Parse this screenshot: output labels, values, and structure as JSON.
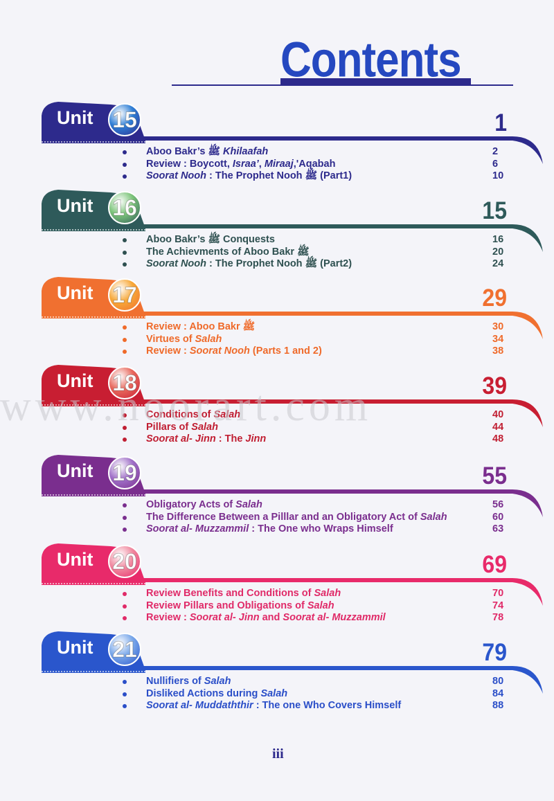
{
  "title": "Contents",
  "folio": "iii",
  "watermark": "www.noorart.com",
  "units": [
    {
      "label": "Unit",
      "number": "15",
      "page": "1",
      "color": "#2d2a8c",
      "badge_color": "#2f7fd6",
      "text_color": "#2d2a8c",
      "items": [
        {
          "text": "Aboo Bakr’s ﷺ Khilaafah",
          "page": "2"
        },
        {
          "text": "Review : Boycott, Israa’, Miraaj,'Aqabah",
          "page": "6"
        },
        {
          "text": "Soorat Nooh : The Prophet Nooh ﷺ (Part1)",
          "page": "10"
        }
      ]
    },
    {
      "label": "Unit",
      "number": "16",
      "page": "15",
      "color": "#2e5a5a",
      "badge_color": "#7cc47a",
      "text_color": "#2e5050",
      "items": [
        {
          "text": "Aboo Bakr’s ﷺ Conquests",
          "page": "16"
        },
        {
          "text": "The Achievments of Aboo Bakr ﷺ",
          "page": "20"
        },
        {
          "text": "Soorat Nooh : The Prophet Nooh ﷺ (Part2)",
          "page": "24"
        }
      ]
    },
    {
      "label": "Unit",
      "number": "17",
      "page": "29",
      "color": "#f07030",
      "badge_color": "#f7a838",
      "text_color": "#ef6a2a",
      "items": [
        {
          "text": "Review : Aboo Bakr ﷺ",
          "page": "30"
        },
        {
          "text": "Virtues of Salah",
          "page": "34"
        },
        {
          "text": "Review : Soorat Nooh (Parts 1 and 2)",
          "page": "38"
        }
      ]
    },
    {
      "label": "Unit",
      "number": "18",
      "page": "39",
      "color": "#c81e32",
      "badge_color": "#e86a5e",
      "text_color": "#c01e32",
      "items": [
        {
          "text": "Conditions of Salah",
          "page": "40"
        },
        {
          "text": "Pillars of Salah",
          "page": "44"
        },
        {
          "text": "Soorat al- Jinn : The Jinn",
          "page": "48"
        }
      ]
    },
    {
      "label": "Unit",
      "number": "19",
      "page": "55",
      "color": "#7a2e8e",
      "badge_color": "#a070c8",
      "text_color": "#7a2e8e",
      "items": [
        {
          "text": "Obligatory Acts of Salah",
          "page": "56"
        },
        {
          "text": "The Difference Between a Pilllar and an Obligatory Act of Salah",
          "page": "60"
        },
        {
          "text": "Soorat al- Muzzammil : The One who Wraps Himself",
          "page": "63"
        }
      ]
    },
    {
      "label": "Unit",
      "number": "20",
      "page": "69",
      "color": "#e82a6a",
      "badge_color": "#f08aa0",
      "text_color": "#e02a68",
      "items": [
        {
          "text": "Review Benefits and Conditions of Salah",
          "page": "70"
        },
        {
          "text": "Review Pillars and Obligations of Salah",
          "page": "74"
        },
        {
          "text": "Review : Soorat al- Jinn and Soorat al- Muzzammil",
          "page": "78"
        }
      ]
    },
    {
      "label": "Unit",
      "number": "21",
      "page": "79",
      "color": "#2a56cc",
      "badge_color": "#7aa8ea",
      "text_color": "#2a4ec8",
      "items": [
        {
          "text": "Nullifiers of Salah",
          "page": "80"
        },
        {
          "text": "Disliked Actions during Salah",
          "page": "84"
        },
        {
          "text": "Soorat al- Muddaththir : The one Who Covers Himself",
          "page": "88"
        }
      ]
    }
  ]
}
